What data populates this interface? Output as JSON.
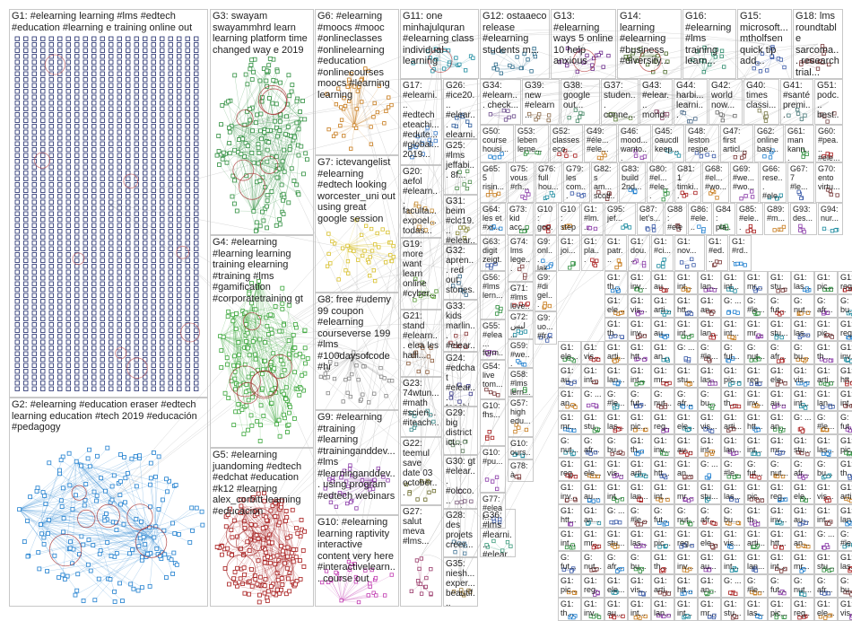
{
  "groups": [
    {
      "id": "G1",
      "label": "G1: #elearning learning #lms #edtech #education #learning e training online out",
      "color": "#1f2a6b"
    },
    {
      "id": "G2",
      "label": "G2: #elearning #education eraser #edtech learning education #tech 2019 #educación #pedagogy",
      "color": "#1f7fcf"
    },
    {
      "id": "G3",
      "label": "G3: swayam swayammhrd learn learning platform time changed way e 2019",
      "color": "#2f8f3f"
    },
    {
      "id": "G4",
      "label": "G4: #elearning #learning learning training elearning #training #lms #gamification #corporatetraining gt",
      "color": "#3aa63a"
    },
    {
      "id": "G5",
      "label": "G5: #elearning juandoming #edtech #edchat #education #k12 #learning alex_corbitt learning #educacion",
      "color": "#a81c1c"
    },
    {
      "id": "G6",
      "label": "G6: #elearning #moocs #mooc #onlineclasses #onlinelearning #education #onlinecourses moocs #learning learning",
      "color": "#c77a1a"
    },
    {
      "id": "G7",
      "label": "G7: ictevangelist #elearning #edtech looking worcester_uni out using great google session",
      "color": "#d8c02a"
    },
    {
      "id": "G8",
      "label": "G8: free #udemy 99 coupon #elearning courseverse 199 #lms #100daysofcode #hr",
      "color": "#888888"
    },
    {
      "id": "G9",
      "label": "G9: #elearning #training #learning #traininganddev... #lms #learninganddev... using program #edtech webinars",
      "color": "#8a3aa8"
    },
    {
      "id": "G10",
      "label": "G10: #elearning learning raptivity interactive content very here #interactivelearn... course out",
      "color": "#c03ab0"
    },
    {
      "id": "G11",
      "label": "G11: one minhajulquran #elearning class individual learning",
      "color": "#1e8ca0"
    },
    {
      "id": "G12",
      "label": "G12: ostaaeco release #elearning students m...",
      "color": "#2a6a8a"
    },
    {
      "id": "G13",
      "label": "G13: #elearning ways 5 online 10 help anxious",
      "color": "#6a2a8a"
    },
    {
      "id": "G14",
      "label": "G14: learning #elearning #business #diversity...",
      "color": "#4a6a2a"
    },
    {
      "id": "G16",
      "label": "G16: #elearning #lms training learn...",
      "color": "#2a8a6a"
    },
    {
      "id": "G15",
      "label": "G15: microsoft... mtholfsen quick tip add...",
      "color": "#3a5aa8"
    },
    {
      "id": "G18",
      "label": "G18: lms roundtable sarcoma... research trial...",
      "color": "#7a3a3a"
    },
    {
      "id": "G17",
      "label": "G17: #elearni... #edtech eteachi... #edute... #global... 2019...",
      "color": "#3a7ac8"
    },
    {
      "id": "G20",
      "label": "G20: aefol #elearn... faculta... expoel... todas...",
      "color": "#c8903a"
    },
    {
      "id": "G19",
      "label": "G19: more want learn online #cyber...",
      "color": "#5a9a3a"
    },
    {
      "id": "G21",
      "label": "G21: stand #elearn... elea les halli...",
      "color": "#8a5a3a"
    },
    {
      "id": "G23",
      "label": "G23: 74wtun... #math #scien... #iteach...",
      "color": "#3a8a8a"
    },
    {
      "id": "G22",
      "label": "G22: teemul save date 03 october...",
      "color": "#6a6a2a"
    },
    {
      "id": "G27",
      "label": "G27: salut meva #lms...",
      "color": "#9a3a6a"
    },
    {
      "id": "G26",
      "label": "G26: #ice20... #elear... elearni...",
      "color": "#2a5a9a"
    },
    {
      "id": "G25",
      "label": "G25: #lms jeffabi... 8f...",
      "color": "#4a8a4a"
    },
    {
      "id": "G31",
      "label": "G31: beim #clc19... #elear...",
      "color": "#8a8a3a"
    },
    {
      "id": "G32",
      "label": "G32: apren... red out stories...",
      "color": "#3a6a8a"
    },
    {
      "id": "G33",
      "label": "G33: kids marlin... #elear...",
      "color": "#8a3a3a"
    },
    {
      "id": "G24",
      "label": "G24: #edchat #elear... teachi...",
      "color": "#3a3a8a"
    },
    {
      "id": "G29",
      "label": "G29: big district ict...",
      "color": "#5a7a5a"
    },
    {
      "id": "G30",
      "label": "G30: gt #elear... #olcco... next...",
      "color": "#7a5a7a"
    },
    {
      "id": "G28",
      "label": "G28: des projets créer...",
      "color": "#4a7a9a"
    },
    {
      "id": "G35",
      "label": "G35: niesh... exper... beautif...",
      "color": "#9a7a3a"
    },
    {
      "id": "G36",
      "label": "G36: #lms #learni... #elear...",
      "color": "#3a9a7a"
    },
    {
      "id": "G34",
      "label": "G34: #elearn... check...",
      "color": "#6a4a8a"
    },
    {
      "id": "G39",
      "label": "G39: new #elearn...",
      "color": "#8a6a4a"
    },
    {
      "id": "G38",
      "label": "G38: google out...",
      "color": "#4a8a6a"
    },
    {
      "id": "G37",
      "label": "G37: studen... conne...",
      "color": "#6a8a4a"
    },
    {
      "id": "G43",
      "label": "G43: #elear... mond...",
      "color": "#8a4a6a"
    },
    {
      "id": "G44",
      "label": "G44: harbi... learni...",
      "color": "#4a6a8a"
    },
    {
      "id": "G42",
      "label": "G42: world now...",
      "color": "#6a6a6a"
    },
    {
      "id": "G40",
      "label": "G40: times classi...",
      "color": "#7a7a4a"
    },
    {
      "id": "G41",
      "label": "G41: #santé premi...",
      "color": "#4a7a7a"
    },
    {
      "id": "G51",
      "label": "G51: podc... best...",
      "color": "#7a4a4a"
    }
  ],
  "cells": [
    "G50: course housi...",
    "G53: leben lerne...",
    "G52: classes eco...",
    "G49: #éle... #ele...",
    "G46: mood... wanto...",
    "G45: oaucdl keep...",
    "G48: leston respe...",
    "G47: first articl...",
    "G62: online basi...",
    "G61: man kann...",
    "G60: #pea... #ele...",
    "G65: 5 risin...",
    "G75: vous #rh...",
    "G76: full hou...",
    "G79: les com...",
    "G82: s am... scotl...",
    "G83: build 2nd...",
    "G80: #el... #ele...",
    "G81: 1 timki...",
    "G68: #el... #wo...",
    "G69: #we... #wo...",
    "G66: rese... #ele...",
    "G67: 7 #le...",
    "G70: ento virtu...",
    "G64: les et #xr...",
    "G73: kid acc...",
    "G10: goo...",
    "G10: step...",
    "G1: #lm...",
    "G95: jef...",
    "G87: let's...",
    "G88: #ele...",
    "G86: #ele...",
    "G84: pla...",
    "G85: #ele...",
    "G89: #m...",
    "G93: des...",
    "G94: nur...",
    "G63: digit zeigt...",
    "G74: lms lege...",
    "G9: onl... lak...",
    "G1: joi...",
    "G1: pla...",
    "G1: patr...",
    "G1: dou...",
    "G1: #ci...",
    "G1: nov...",
    "G1: #ed...",
    "G1: #rd...",
    "G56: #lms lern...",
    "G71: #lms love...",
    "G9: #di gel...",
    "G55: #elea... form...",
    "G72: ليس ...",
    "G9: uo... #fr...",
    "G54: live tom...",
    "G59: #we...",
    "G58: #lms lern...",
    "G10: fhs...",
    "G57: high edu...",
    "G10: #pu...",
    "G10: ours...",
    "G77: #elear...",
    "G78: à mes livre..."
  ],
  "minis": [
    "G1: th...",
    "G1: inv...",
    "G1: au...",
    "G1: int...",
    "G1: lan...",
    "G1: int...",
    "G1: mr...",
    "G1: stu...",
    "G1: las...",
    "G1: pic...",
    "G1: reg...",
    "G1: ele...",
    "G1: vis...",
    "G1: arti...",
    "G1: htt...",
    "G1: an...",
    "G: ...",
    "G: #le...",
    "G: fut...",
    "G: nut...",
    "G: afr...",
    "G: bu..."
  ]
}
